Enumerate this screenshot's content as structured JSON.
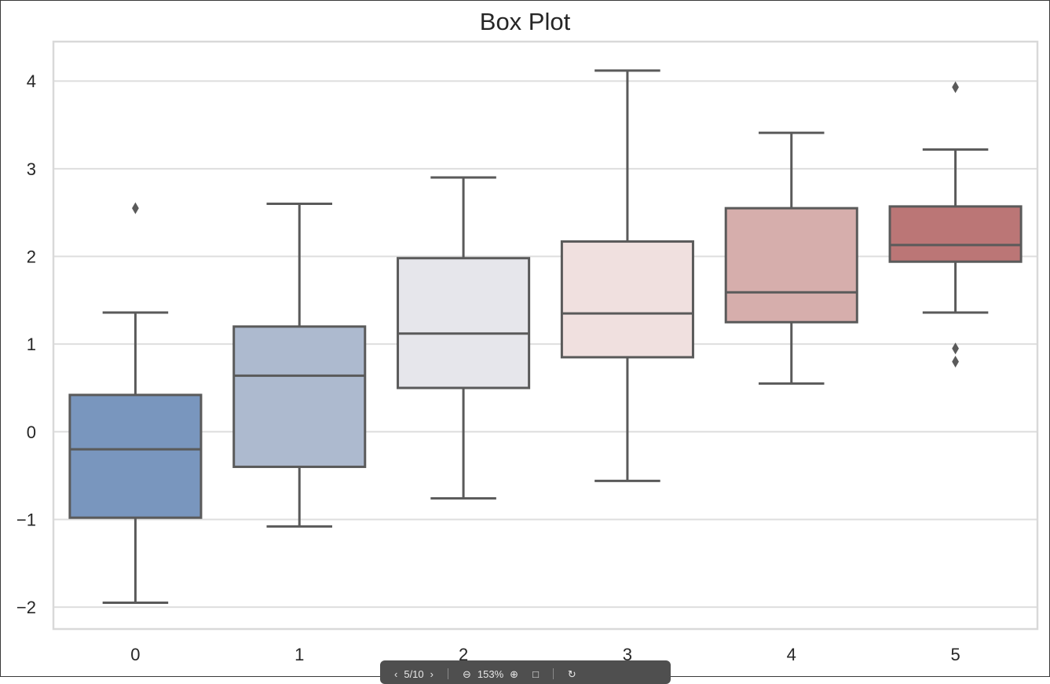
{
  "chart_data": {
    "type": "box",
    "title": "Box Plot",
    "xlabel": "",
    "ylabel": "",
    "categories": [
      "0",
      "1",
      "2",
      "3",
      "4",
      "5"
    ],
    "ylim": [
      -2.25,
      4.45
    ],
    "yticks": [
      -2,
      -1,
      0,
      1,
      2,
      3,
      4
    ],
    "ytick_labels": [
      "−2",
      "−1",
      "0",
      "1",
      "2",
      "3",
      "4"
    ],
    "grid": true,
    "legend": "none",
    "boxes": [
      {
        "category": "0",
        "whislo": -1.95,
        "q1": -0.98,
        "med": -0.2,
        "q3": 0.42,
        "whishi": 1.36,
        "fliers": [
          2.55
        ],
        "color": "#7996be"
      },
      {
        "category": "1",
        "whislo": -1.08,
        "q1": -0.4,
        "med": 0.64,
        "q3": 1.2,
        "whishi": 2.6,
        "fliers": [],
        "color": "#adbacf"
      },
      {
        "category": "2",
        "whislo": -0.76,
        "q1": 0.5,
        "med": 1.12,
        "q3": 1.98,
        "whishi": 2.9,
        "fliers": [],
        "color": "#e6e6eb"
      },
      {
        "category": "3",
        "whislo": -0.56,
        "q1": 0.85,
        "med": 1.35,
        "q3": 2.17,
        "whishi": 4.12,
        "fliers": [],
        "color": "#f0e0df"
      },
      {
        "category": "4",
        "whislo": 0.55,
        "q1": 1.25,
        "med": 1.59,
        "q3": 2.55,
        "whishi": 3.41,
        "fliers": [],
        "color": "#d6aeac"
      },
      {
        "category": "5",
        "whislo": 1.36,
        "q1": 1.94,
        "med": 2.13,
        "q3": 2.57,
        "whishi": 3.22,
        "fliers": [
          3.93,
          0.95,
          0.8
        ],
        "color": "#bb7676"
      }
    ],
    "colors": {
      "line": "#5a5a5a",
      "grid": "#dedede",
      "spine": "#d9d9d9",
      "text": "#262626"
    }
  },
  "viewer_toolbar": {
    "page_indicator": "5/10",
    "zoom_level": "153%"
  }
}
